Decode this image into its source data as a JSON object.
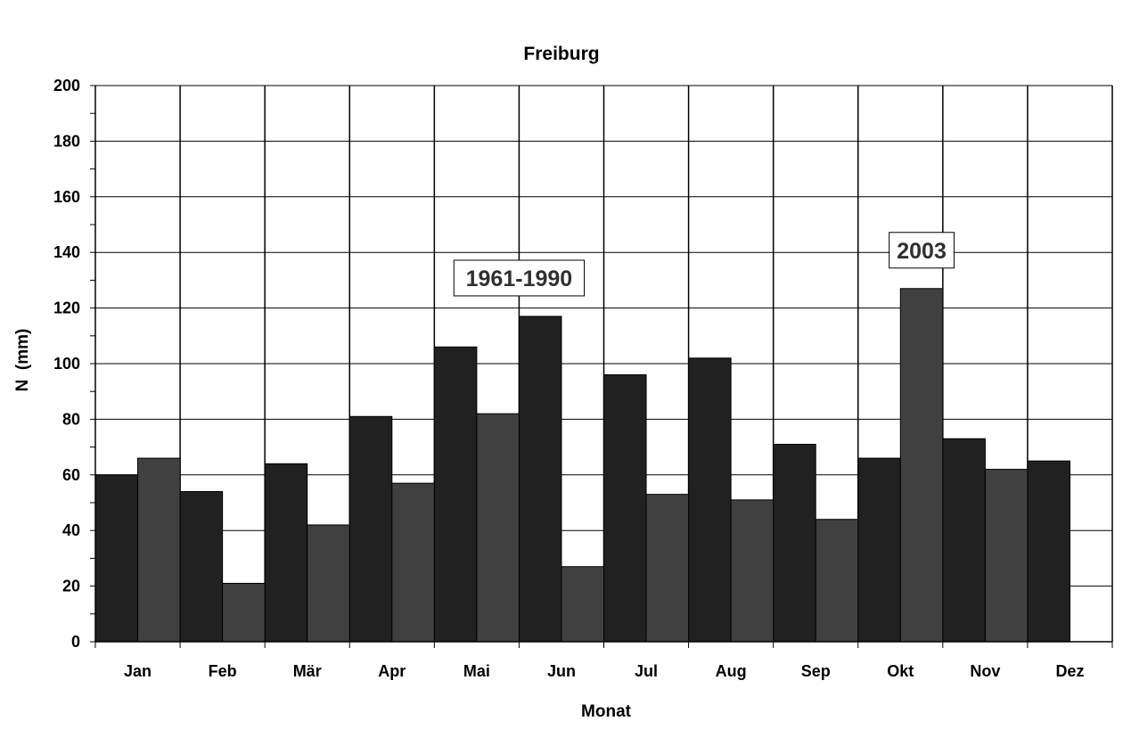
{
  "chart_data": {
    "type": "bar",
    "title": "Freiburg",
    "xlabel": "Monat",
    "ylabel": "N  (mm)",
    "ylim": [
      0,
      200
    ],
    "yticks": [
      0,
      20,
      40,
      60,
      80,
      100,
      120,
      140,
      160,
      180,
      200
    ],
    "grid": true,
    "categories": [
      "Jan",
      "Feb",
      "Mär",
      "Apr",
      "Mai",
      "Jun",
      "Jul",
      "Aug",
      "Sep",
      "Okt",
      "Nov",
      "Dez"
    ],
    "series": [
      {
        "name": "1961-1990",
        "color": "#212121",
        "values": [
          60,
          54,
          64,
          81,
          106,
          117,
          96,
          102,
          71,
          66,
          73,
          65
        ]
      },
      {
        "name": "2003",
        "color": "#404040",
        "values": [
          66,
          21,
          42,
          57,
          82,
          27,
          53,
          51,
          44,
          127,
          62,
          null
        ]
      }
    ],
    "annotations": [
      {
        "text": "1961-1990",
        "series": 0,
        "category": "Jun"
      },
      {
        "text": "2003",
        "series": 1,
        "category": "Okt"
      }
    ]
  }
}
